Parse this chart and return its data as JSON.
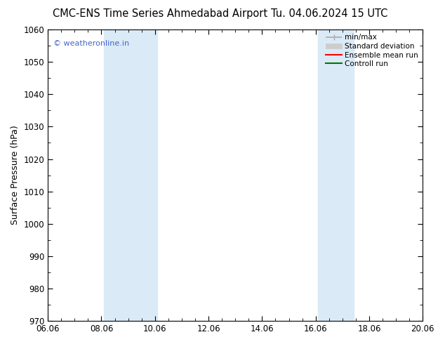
{
  "title_left": "CMC-ENS Time Series Ahmedabad Airport",
  "title_right": "Tu. 04.06.2024 15 UTC",
  "ylabel": "Surface Pressure (hPa)",
  "ylim": [
    970,
    1060
  ],
  "yticks": [
    970,
    980,
    990,
    1000,
    1010,
    1020,
    1030,
    1040,
    1050,
    1060
  ],
  "xlim": [
    0,
    14
  ],
  "xtick_labels": [
    "06.06",
    "08.06",
    "10.06",
    "12.06",
    "14.06",
    "16.06",
    "18.06",
    "20.06"
  ],
  "xtick_positions_days": [
    0,
    2,
    4,
    6,
    8,
    10,
    12,
    14
  ],
  "shade_bands": [
    {
      "start_day": 2.08,
      "end_day": 4.08
    },
    {
      "start_day": 10.08,
      "end_day": 11.42
    }
  ],
  "shade_color": "#daeaf7",
  "watermark": "© weatheronline.in",
  "watermark_color": "#4466cc",
  "legend_labels": [
    "min/max",
    "Standard deviation",
    "Ensemble mean run",
    "Controll run"
  ],
  "legend_line_color": "#aaaaaa",
  "legend_std_color": "#cccccc",
  "legend_ensemble_color": "#ff0000",
  "legend_control_color": "#007700",
  "background_color": "#ffffff",
  "title_fontsize": 10.5,
  "axis_label_fontsize": 9,
  "tick_fontsize": 8.5,
  "watermark_fontsize": 8,
  "legend_fontsize": 7.5
}
